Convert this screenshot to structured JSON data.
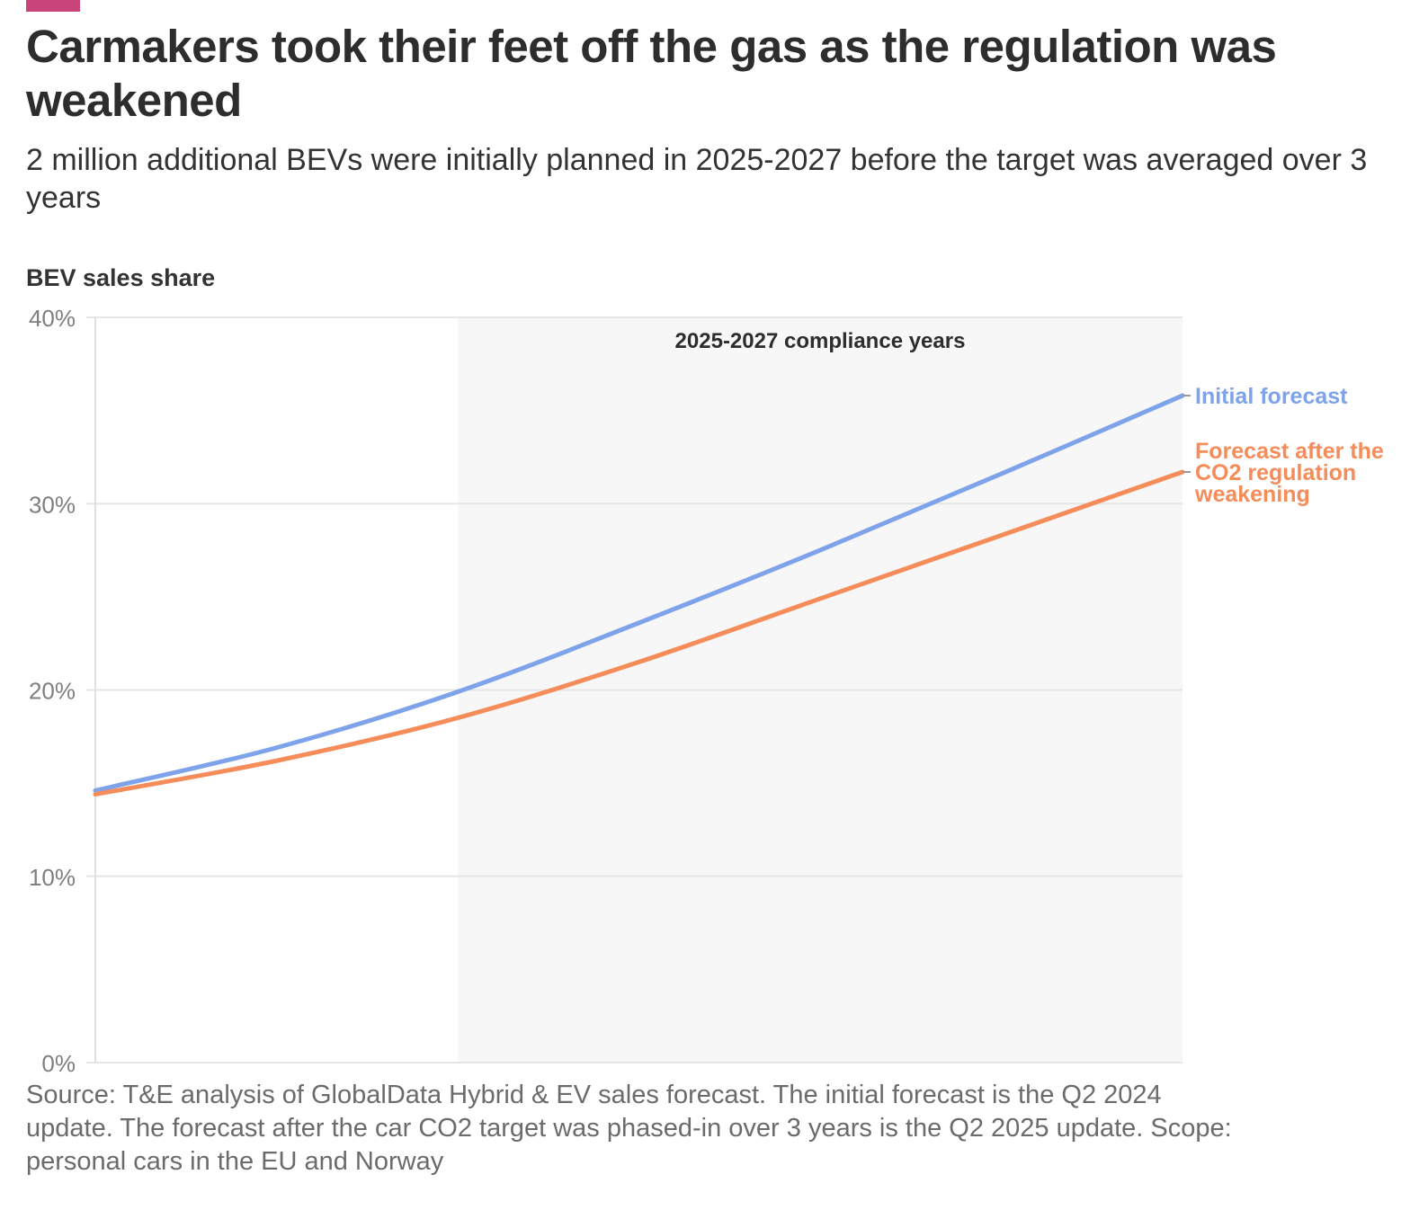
{
  "header": {
    "title": "Carmakers took their feet off the gas as the regulation was weakened",
    "subtitle": "2 million additional BEVs were initially planned in 2025-2027 before the target was averaged over 3 years"
  },
  "colors": {
    "brand": "#c8447a",
    "initial_forecast": "#7ea3ea",
    "forecast_after_weakening": "#f58c59",
    "shaded_region": "#f7f7f7",
    "grid": "#e6e6e6",
    "tick_text": "#7f7f7f"
  },
  "chart_data": {
    "type": "line",
    "ylabel": "BEV sales share",
    "ylim": [
      0,
      40
    ],
    "yticks": [
      0,
      10,
      20,
      30,
      40
    ],
    "ytick_labels": [
      "0%",
      "10%",
      "20%",
      "30%",
      "40%"
    ],
    "x": [
      2024,
      2025,
      2026,
      2027
    ],
    "xlim": [
      2024,
      2027
    ],
    "xtick_labels": [],
    "grid": true,
    "legend": "direct labels at line ends (right)",
    "annotation": {
      "label": "2025-2027 compliance years",
      "range": [
        2025,
        2027
      ]
    },
    "series": [
      {
        "name": "Initial forecast",
        "x": [
          2024,
          2024.5,
          2025,
          2025.5,
          2026,
          2026.5,
          2027
        ],
        "values": [
          14.6,
          16.9,
          19.9,
          23.6,
          27.5,
          31.6,
          35.8
        ]
      },
      {
        "name": "Forecast after the CO2 regulation weakening",
        "x": [
          2024,
          2024.5,
          2025,
          2025.5,
          2026,
          2026.5,
          2027
        ],
        "values": [
          14.4,
          16.2,
          18.5,
          21.5,
          24.9,
          28.3,
          31.7
        ]
      }
    ],
    "series_label_lines": [
      [
        "Initial forecast"
      ],
      [
        "Forecast after the",
        "CO2 regulation",
        "weakening"
      ]
    ]
  },
  "source_note": "Source: T&E analysis of GlobalData Hybrid & EV sales forecast. The initial forecast is the Q2 2024 update. The forecast after the car CO2 target was phased-in over 3 years is the Q2 2025 update. Scope: personal cars in the EU and Norway"
}
